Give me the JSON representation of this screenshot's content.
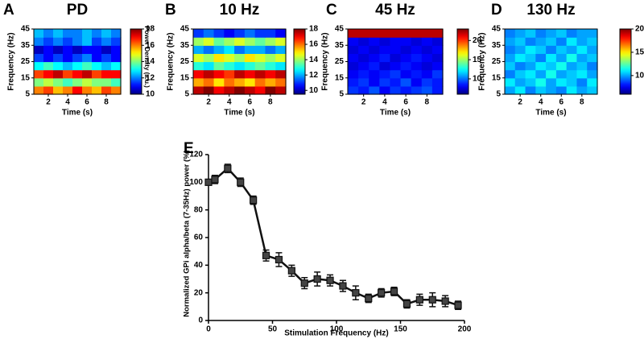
{
  "chart_data": [
    {
      "type": "heatmap",
      "panel": "A",
      "title": "PD",
      "xlabel": "Time (s)",
      "ylabel": "Frequency (Hz)",
      "colorbar_label": "Power Density (a.u.)",
      "colormap": "jet",
      "x": [
        1,
        2,
        3,
        4,
        5,
        6,
        7,
        8,
        9
      ],
      "y": [
        7.5,
        12.5,
        17.5,
        22.5,
        27.5,
        32.5,
        37.5,
        42.5
      ],
      "xlim": [
        0.5,
        9.5
      ],
      "ylim": [
        5,
        45
      ],
      "xticks": [
        2,
        4,
        6,
        8
      ],
      "yticks": [
        5,
        15,
        25,
        35,
        45
      ],
      "clim": [
        10,
        18
      ],
      "cticks": [
        10,
        12,
        14,
        16,
        18
      ],
      "values": [
        [
          16,
          16.5,
          15.5,
          16,
          17,
          16,
          15.5,
          16.5,
          16
        ],
        [
          14,
          14.5,
          14,
          13.5,
          14,
          14.5,
          14,
          14,
          13.5
        ],
        [
          16.5,
          17,
          17.5,
          16.5,
          17,
          17.5,
          16.5,
          17,
          17
        ],
        [
          13,
          13.5,
          13,
          12.5,
          13,
          13.5,
          13,
          12.5,
          13
        ],
        [
          11.5,
          11,
          11.5,
          11,
          11.5,
          12,
          11,
          11.5,
          11
        ],
        [
          10.5,
          11,
          10.5,
          11,
          10.5,
          11,
          11,
          10.5,
          11
        ],
        [
          12,
          11.5,
          12,
          11.5,
          12,
          12.5,
          11.5,
          12,
          11.5
        ],
        [
          12.5,
          12,
          12.5,
          12,
          12,
          12.5,
          12,
          12.5,
          12
        ]
      ]
    },
    {
      "type": "heatmap",
      "panel": "B",
      "title": "10 Hz",
      "xlabel": "Time (s)",
      "ylabel": "Frequency (Hz)",
      "colormap": "jet",
      "x": [
        1,
        2,
        3,
        4,
        5,
        6,
        7,
        8,
        9
      ],
      "y": [
        7.5,
        12.5,
        17.5,
        22.5,
        27.5,
        32.5,
        37.5,
        42.5
      ],
      "xlim": [
        0.5,
        9.5
      ],
      "ylim": [
        5,
        45
      ],
      "xticks": [
        2,
        4,
        6,
        8
      ],
      "yticks": [
        5,
        15,
        25,
        35,
        45
      ],
      "clim": [
        9.5,
        18
      ],
      "cticks": [
        10,
        12,
        14,
        16,
        18
      ],
      "values": [
        [
          17.5,
          18,
          17,
          17.5,
          18,
          17.5,
          17,
          18,
          17.5
        ],
        [
          15.5,
          16,
          15,
          16,
          15.5,
          15,
          16,
          15.5,
          16
        ],
        [
          17,
          17.5,
          17,
          16.5,
          17.5,
          17,
          17.5,
          17,
          17.5
        ],
        [
          13,
          12.5,
          13.5,
          13,
          12.5,
          13,
          13.5,
          13,
          12.5
        ],
        [
          14.5,
          14,
          15,
          14.5,
          14,
          15,
          14.5,
          14,
          14.5
        ],
        [
          12,
          11.5,
          12,
          12.5,
          11.5,
          12,
          12,
          11.5,
          12
        ],
        [
          14,
          14.5,
          13.5,
          14,
          14.5,
          14,
          13.5,
          14,
          14.5
        ],
        [
          11,
          11.5,
          11,
          10.5,
          11,
          11.5,
          11,
          11,
          10.5
        ]
      ]
    },
    {
      "type": "heatmap",
      "panel": "C",
      "title": "45 Hz",
      "xlabel": "Time (s)",
      "ylabel": "Frequency (Hz)",
      "colormap": "jet",
      "x": [
        1,
        2,
        3,
        4,
        5,
        6,
        7,
        8,
        9
      ],
      "y": [
        7.5,
        12.5,
        17.5,
        22.5,
        27.5,
        32.5,
        37.5,
        42.5
      ],
      "xlim": [
        0.5,
        9.5
      ],
      "ylim": [
        5,
        45
      ],
      "xticks": [
        2,
        4,
        6,
        8
      ],
      "yticks": [
        5,
        15,
        25,
        35,
        45
      ],
      "clim": [
        6,
        23
      ],
      "cticks": [
        10,
        15,
        20
      ],
      "values": [
        [
          9,
          8.5,
          9.5,
          8,
          9,
          8.5,
          9,
          9.5,
          8.5
        ],
        [
          8.5,
          9,
          8,
          9,
          8.5,
          9.5,
          8,
          9,
          8.5
        ],
        [
          8,
          8.5,
          8,
          8.5,
          9,
          8,
          8.5,
          8,
          9
        ],
        [
          7.5,
          8,
          8.5,
          7.5,
          8,
          8.5,
          8,
          7.5,
          8
        ],
        [
          8,
          7.5,
          8,
          8.5,
          7.5,
          8,
          8.5,
          8,
          7.5
        ],
        [
          7.5,
          8,
          7.5,
          8,
          8,
          7.5,
          8,
          7.5,
          8
        ],
        [
          8,
          7.5,
          8,
          7.5,
          8,
          8,
          7.5,
          8,
          7.5
        ],
        [
          22,
          22,
          22,
          22,
          22,
          22,
          22,
          22,
          22
        ]
      ]
    },
    {
      "type": "heatmap",
      "panel": "D",
      "title": "130 Hz",
      "xlabel": "Time (s)",
      "ylabel": "Frequency (Hz)",
      "colormap": "jet",
      "x": [
        1,
        2,
        3,
        4,
        5,
        6,
        7,
        8,
        9
      ],
      "y": [
        7.5,
        12.5,
        17.5,
        22.5,
        27.5,
        32.5,
        37.5,
        42.5
      ],
      "xlim": [
        0.5,
        9.5
      ],
      "ylim": [
        5,
        45
      ],
      "xticks": [
        2,
        4,
        6,
        8
      ],
      "yticks": [
        5,
        15,
        25,
        35,
        45
      ],
      "clim": [
        6,
        20
      ],
      "cticks": [
        10,
        15,
        20
      ],
      "values": [
        [
          10,
          11,
          9.5,
          10.5,
          10,
          9.5,
          11,
          10,
          10.5
        ],
        [
          11,
          10,
          10.5,
          11.5,
          10,
          11,
          10.5,
          9.5,
          11
        ],
        [
          9.5,
          10.5,
          11,
          10,
          11.5,
          10,
          10.5,
          11,
          10
        ],
        [
          10.5,
          9.5,
          10,
          11,
          10.5,
          11.5,
          10,
          10.5,
          9.5
        ],
        [
          10,
          11,
          10.5,
          9.5,
          11,
          10,
          11.5,
          10,
          10.5
        ],
        [
          9.5,
          10,
          11,
          10.5,
          9.5,
          10.5,
          10,
          11,
          10
        ],
        [
          10,
          10.5,
          9.5,
          10,
          10.5,
          9.5,
          11,
          10,
          10.5
        ],
        [
          9.5,
          10,
          10.5,
          9.5,
          10,
          10.5,
          9.5,
          10,
          10
        ]
      ]
    },
    {
      "type": "line",
      "panel": "E",
      "xlabel": "Stimulation Frequency (Hz)",
      "ylabel": "Normalized GPi alpha/beta (7-35Hz) power (%)",
      "color": "#111111",
      "marker_color": "#444444",
      "x": [
        0,
        5,
        15,
        25,
        35,
        45,
        55,
        65,
        75,
        85,
        95,
        105,
        115,
        125,
        135,
        145,
        155,
        165,
        175,
        185,
        195
      ],
      "values": [
        100,
        102,
        110,
        100,
        87,
        47,
        44,
        36,
        27,
        30,
        29,
        25,
        20,
        16,
        20,
        21,
        12,
        15,
        15,
        14,
        11
      ],
      "errors": [
        2,
        3,
        3,
        3,
        3,
        4,
        5,
        4,
        4,
        5,
        4,
        4,
        5,
        3,
        3,
        3,
        3,
        4,
        5,
        4,
        3
      ],
      "xlim": [
        0,
        200
      ],
      "ylim": [
        0,
        120
      ],
      "xticks": [
        0,
        50,
        100,
        150,
        200
      ],
      "yticks": [
        0,
        20,
        40,
        60,
        80,
        100,
        120
      ]
    }
  ]
}
